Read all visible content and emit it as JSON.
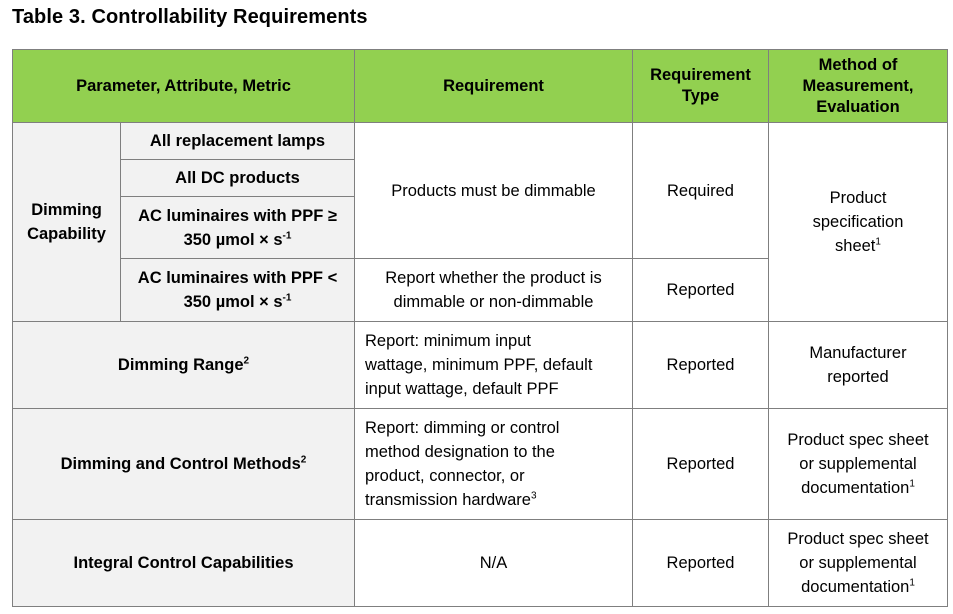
{
  "title": "Table 3. Controllability Requirements",
  "headers": {
    "parameter": "Parameter, Attribute, Metric",
    "requirement": "Requirement",
    "type_line1": "Requirement",
    "type_line2": "Type",
    "method_line1": "Method of",
    "method_line2": "Measurement,",
    "method_line3": "Evaluation"
  },
  "dimming_capability": {
    "label_line1": "Dimming",
    "label_line2": "Capability",
    "sub1": "All replacement lamps",
    "sub2": "All DC products",
    "sub3_line1": "AC luminaires with PPF ≥",
    "sub3_line2": "350 µmol × s",
    "sub3_exp": "-1",
    "sub4_line1": "AC luminaires with PPF <",
    "sub4_line2": "350 µmol × s",
    "sub4_exp": "-1",
    "req_main": "Products must be dimmable",
    "type_main": "Required",
    "req_sub4_line1": "Report whether the product is",
    "req_sub4_line2": "dimmable or non-dimmable",
    "type_sub4": "Reported",
    "method_line1": "Product",
    "method_line2": "specification",
    "method_line3": "sheet",
    "method_sup": "1"
  },
  "dimming_range": {
    "label": "Dimming Range",
    "label_sup": "2",
    "req_line1": "Report: minimum input",
    "req_line2": "wattage, minimum PPF, default",
    "req_line3": "input wattage, default PPF",
    "type": "Reported",
    "method_line1": "Manufacturer",
    "method_line2": "reported"
  },
  "control_methods": {
    "label": "Dimming and Control Methods",
    "label_sup": "2",
    "req_line1": "Report: dimming or control",
    "req_line2": "method designation to the",
    "req_line3": "product, connector, or",
    "req_line4": "transmission hardware",
    "req_sup": "3",
    "type": "Reported",
    "method_line1": "Product spec sheet",
    "method_line2": "or supplemental",
    "method_line3": "documentation",
    "method_sup": "1"
  },
  "integral_control": {
    "label": "Integral Control Capabilities",
    "req": "N/A",
    "type": "Reported",
    "method_line1": "Product spec sheet",
    "method_line2": "or supplemental",
    "method_line3": "documentation",
    "method_sup": "1"
  },
  "colors": {
    "header_green": "#92d050",
    "shade_gray": "#f2f2f2",
    "border_gray": "#7f7f7f"
  }
}
